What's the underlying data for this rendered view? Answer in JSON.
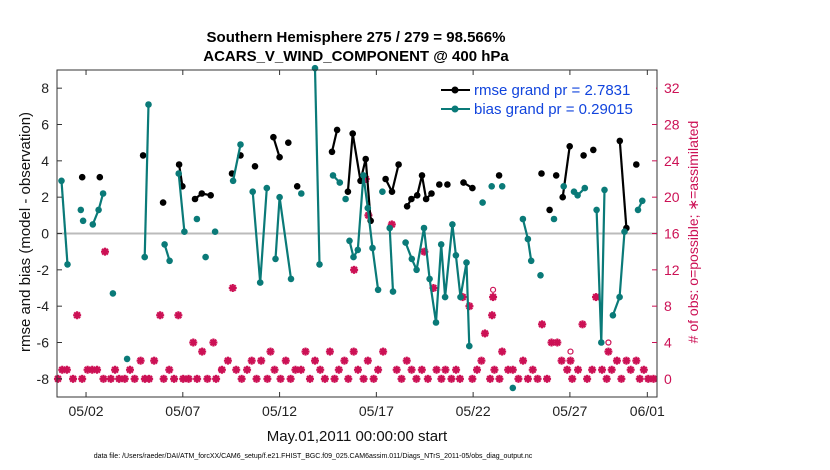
{
  "chart_data": {
    "type": "line",
    "title": "Southern Hemisphere 275 / 279 = 98.566%",
    "subtitle": "ACARS_V_WIND_COMPONENT @ 400 hPa",
    "xlabel": "May.01,2011 00:00:00 start",
    "ylabel": "rmse and bias (model - observation)",
    "ylabel_right": "# of obs: o=possible; ∗=assimilated",
    "xlim": [
      0.5,
      31.5
    ],
    "ylim": [
      -9,
      9
    ],
    "ylim_right": [
      -2,
      34
    ],
    "x_ticks": [
      {
        "x": 2,
        "label": "05/02"
      },
      {
        "x": 7,
        "label": "05/07"
      },
      {
        "x": 12,
        "label": "05/12"
      },
      {
        "x": 17,
        "label": "05/17"
      },
      {
        "x": 22,
        "label": "05/22"
      },
      {
        "x": 27,
        "label": "05/27"
      },
      {
        "x": 31,
        "label": "06/01"
      }
    ],
    "y_ticks": [
      -8,
      -6,
      -4,
      -2,
      0,
      2,
      4,
      6,
      8
    ],
    "y_ticks_right": [
      0,
      4,
      8,
      12,
      16,
      20,
      24,
      28,
      32
    ],
    "zero_line": 0,
    "legend": {
      "placement": "top-right",
      "entries": [
        "rmse grand pr = 2.7831",
        "bias grand pr = 0.29015"
      ]
    },
    "colors": {
      "rmse": "#000000",
      "bias": "#0a7a78",
      "obs": "#cc1155",
      "zero": "#bbbbbb"
    },
    "series": [
      {
        "name": "rmse grand pr = 2.7831",
        "segments": [
          [
            [
              1.8,
              3.1
            ]
          ],
          [
            [
              2.71,
              3.1
            ]
          ],
          [
            [
              4.95,
              4.3
            ]
          ],
          [
            [
              5.98,
              1.7
            ]
          ],
          [
            [
              6.81,
              3.8
            ],
            [
              6.98,
              2.6
            ]
          ],
          [
            [
              7.63,
              1.9
            ],
            [
              7.98,
              2.2
            ],
            [
              8.44,
              2.1
            ]
          ],
          [
            [
              9.54,
              3.3
            ]
          ],
          [
            [
              9.98,
              4.3
            ]
          ],
          [
            [
              10.73,
              3.7
            ]
          ],
          [
            [
              11.68,
              5.3
            ],
            [
              12.0,
              4.2
            ]
          ],
          [
            [
              12.45,
              5.0
            ]
          ],
          [
            [
              12.91,
              2.6
            ]
          ],
          [
            [
              14.71,
              4.5
            ],
            [
              14.97,
              5.7
            ]
          ],
          [
            [
              15.53,
              2.3
            ],
            [
              15.78,
              5.5
            ],
            [
              16.18,
              2.9
            ],
            [
              16.45,
              4.1
            ],
            [
              16.71,
              0.7
            ]
          ],
          [
            [
              17.48,
              3.0
            ],
            [
              17.81,
              2.3
            ],
            [
              18.15,
              3.8
            ]
          ],
          [
            [
              18.59,
              1.5
            ],
            [
              18.81,
              1.9
            ],
            [
              19.11,
              2.1
            ],
            [
              19.36,
              3.2
            ],
            [
              19.57,
              1.9
            ],
            [
              19.85,
              2.2
            ]
          ],
          [
            [
              20.25,
              2.7
            ]
          ],
          [
            [
              20.67,
              2.7
            ]
          ],
          [
            [
              21.5,
              2.8
            ],
            [
              21.96,
              2.5
            ]
          ],
          [
            [
              23.34,
              3.2
            ]
          ],
          [
            [
              25.53,
              3.3
            ]
          ],
          [
            [
              25.95,
              1.3
            ]
          ],
          [
            [
              26.29,
              3.2
            ]
          ],
          [
            [
              26.63,
              2.0
            ],
            [
              26.99,
              4.8
            ]
          ],
          [
            [
              27.71,
              4.3
            ]
          ],
          [
            [
              28.21,
              4.6
            ]
          ],
          [
            [
              29.58,
              5.1
            ],
            [
              29.92,
              0.3
            ]
          ],
          [
            [
              30.43,
              3.8
            ]
          ]
        ]
      },
      {
        "name": "bias grand pr = 0.29015",
        "segments": [
          [
            [
              0.73,
              2.9
            ],
            [
              1.04,
              -1.7
            ]
          ],
          [
            [
              1.73,
              1.3
            ]
          ],
          [
            [
              1.85,
              0.7
            ]
          ],
          [
            [
              2.35,
              0.5
            ],
            [
              2.65,
              1.3
            ],
            [
              2.88,
              2.2
            ]
          ],
          [
            [
              3.39,
              -3.3
            ]
          ],
          [
            [
              4.12,
              -6.9
            ]
          ],
          [
            [
              5.03,
              -1.3
            ],
            [
              5.23,
              7.1
            ]
          ],
          [
            [
              6.06,
              -0.6
            ],
            [
              6.32,
              -1.5
            ]
          ],
          [
            [
              6.79,
              3.3
            ],
            [
              7.08,
              0.1
            ]
          ],
          [
            [
              7.73,
              0.8
            ]
          ],
          [
            [
              8.18,
              -1.3
            ]
          ],
          [
            [
              8.67,
              0.1
            ]
          ],
          [
            [
              9.6,
              2.9
            ],
            [
              9.98,
              4.9
            ]
          ],
          [
            [
              10.61,
              2.3
            ],
            [
              11.0,
              -2.7
            ],
            [
              11.34,
              2.5
            ]
          ],
          [
            [
              11.79,
              -1.4
            ],
            [
              12.0,
              2.0
            ],
            [
              12.59,
              -2.5
            ]
          ],
          [
            [
              13.12,
              2.2
            ]
          ],
          [
            [
              13.83,
              9.1
            ],
            [
              14.06,
              -1.7
            ]
          ],
          [
            [
              14.76,
              3.2
            ],
            [
              15.11,
              2.8
            ]
          ],
          [
            [
              15.41,
              1.9
            ]
          ],
          [
            [
              15.61,
              -0.4
            ],
            [
              15.82,
              -1.3
            ],
            [
              16.04,
              -0.9
            ],
            [
              16.33,
              3.2
            ],
            [
              16.56,
              1.4
            ],
            [
              16.8,
              -0.8
            ],
            [
              17.09,
              -3.1
            ]
          ],
          [
            [
              17.31,
              2.3
            ]
          ],
          [
            [
              17.69,
              0.3
            ],
            [
              17.86,
              -3.2
            ]
          ],
          [
            [
              18.51,
              -0.5
            ],
            [
              18.83,
              -1.4
            ],
            [
              19.08,
              -2.0
            ],
            [
              19.46,
              0.3
            ],
            [
              19.75,
              -2.5
            ],
            [
              20.08,
              -4.9
            ],
            [
              20.35,
              -0.6
            ],
            [
              20.55,
              -3.5
            ],
            [
              20.93,
              0.5
            ],
            [
              21.11,
              -1.2
            ],
            [
              21.35,
              -3.5
            ],
            [
              21.66,
              -1.6
            ],
            [
              21.8,
              -6.2
            ]
          ],
          [
            [
              22.49,
              1.7
            ]
          ],
          [
            [
              22.96,
              2.6
            ]
          ],
          [
            [
              23.5,
              2.6
            ]
          ],
          [
            [
              24.05,
              -8.5
            ]
          ],
          [
            [
              24.57,
              0.8
            ],
            [
              24.83,
              -0.3
            ],
            [
              25.0,
              -1.5
            ]
          ],
          [
            [
              25.48,
              -2.3
            ]
          ],
          [
            [
              26.18,
              0.8
            ]
          ],
          [
            [
              26.68,
              2.6
            ]
          ],
          [
            [
              27.21,
              2.3
            ],
            [
              27.4,
              2.1
            ],
            [
              27.77,
              2.5
            ]
          ],
          [
            [
              28.38,
              1.3
            ],
            [
              28.62,
              -6.0
            ],
            [
              28.79,
              2.4
            ]
          ],
          [
            [
              29.22,
              -4.5
            ],
            [
              29.57,
              -3.5
            ],
            [
              29.82,
              0.1
            ]
          ],
          [
            [
              30.52,
              1.3
            ],
            [
              30.74,
              1.8
            ]
          ]
        ]
      }
    ],
    "obs_points": [
      [
        0.55,
        0
      ],
      [
        0.77,
        1
      ],
      [
        1.01,
        1
      ],
      [
        1.33,
        0
      ],
      [
        1.54,
        7
      ],
      [
        1.8,
        0
      ],
      [
        2.08,
        1
      ],
      [
        2.32,
        1
      ],
      [
        2.57,
        1
      ],
      [
        2.9,
        0
      ],
      [
        2.98,
        14
      ],
      [
        3.28,
        0
      ],
      [
        3.5,
        1
      ],
      [
        3.71,
        0
      ],
      [
        4.0,
        0
      ],
      [
        4.27,
        1
      ],
      [
        4.51,
        0
      ],
      [
        4.82,
        2
      ],
      [
        5.04,
        0
      ],
      [
        5.26,
        0
      ],
      [
        5.52,
        2
      ],
      [
        5.83,
        7
      ],
      [
        6.01,
        0
      ],
      [
        6.3,
        1
      ],
      [
        6.55,
        0
      ],
      [
        6.77,
        7
      ],
      [
        7.02,
        0
      ],
      [
        7.3,
        0
      ],
      [
        7.54,
        4
      ],
      [
        7.74,
        0
      ],
      [
        8.0,
        3
      ],
      [
        8.27,
        0
      ],
      [
        8.58,
        4
      ],
      [
        8.72,
        0
      ],
      [
        9.02,
        1
      ],
      [
        9.33,
        2
      ],
      [
        9.58,
        10
      ],
      [
        9.76,
        1
      ],
      [
        10.04,
        0
      ],
      [
        10.32,
        1
      ],
      [
        10.56,
        2
      ],
      [
        10.81,
        0
      ],
      [
        11.05,
        2
      ],
      [
        11.37,
        0
      ],
      [
        11.53,
        3
      ],
      [
        11.74,
        1
      ],
      [
        12.05,
        0
      ],
      [
        12.32,
        2
      ],
      [
        12.57,
        0
      ],
      [
        12.82,
        1
      ],
      [
        13.11,
        1
      ],
      [
        13.34,
        3
      ],
      [
        13.57,
        0
      ],
      [
        13.83,
        2
      ],
      [
        14.1,
        1
      ],
      [
        14.34,
        0
      ],
      [
        14.6,
        3
      ],
      [
        14.84,
        0
      ],
      [
        15.06,
        1
      ],
      [
        15.35,
        2
      ],
      [
        15.55,
        0
      ],
      [
        15.83,
        3
      ],
      [
        16.05,
        1
      ],
      [
        16.34,
        0
      ],
      [
        16.56,
        2
      ],
      [
        16.86,
        0
      ],
      [
        15.85,
        12
      ],
      [
        16.45,
        22
      ],
      [
        16.59,
        18
      ],
      [
        17.09,
        1
      ],
      [
        17.35,
        3
      ],
      [
        17.8,
        17
      ],
      [
        18.05,
        1
      ],
      [
        18.3,
        0
      ],
      [
        18.57,
        2
      ],
      [
        18.82,
        1
      ],
      [
        19.07,
        0
      ],
      [
        19.35,
        1
      ],
      [
        19.48,
        14
      ],
      [
        19.66,
        0
      ],
      [
        19.95,
        10
      ],
      [
        20.11,
        1
      ],
      [
        20.36,
        0
      ],
      [
        20.57,
        1
      ],
      [
        20.88,
        0
      ],
      [
        21.12,
        1
      ],
      [
        21.32,
        0
      ],
      [
        21.46,
        9
      ],
      [
        21.81,
        8
      ],
      [
        21.96,
        0
      ],
      [
        22.2,
        1
      ],
      [
        22.43,
        2
      ],
      [
        22.61,
        5
      ],
      [
        22.88,
        0
      ],
      [
        22.98,
        7
      ],
      [
        23.1,
        1
      ],
      [
        23.36,
        0
      ],
      [
        23.5,
        3
      ],
      [
        23.81,
        1
      ],
      [
        24.05,
        1
      ],
      [
        24.34,
        0
      ],
      [
        24.58,
        2
      ],
      [
        24.83,
        0
      ],
      [
        25.08,
        1
      ],
      [
        25.33,
        0
      ],
      [
        25.56,
        6
      ],
      [
        25.82,
        0
      ],
      [
        26.05,
        4
      ],
      [
        26.35,
        4
      ],
      [
        26.57,
        2
      ],
      [
        26.86,
        1
      ],
      [
        27.12,
        0
      ],
      [
        27.42,
        1
      ],
      [
        27.65,
        6
      ],
      [
        27.89,
        0
      ],
      [
        28.15,
        1
      ],
      [
        28.35,
        9
      ],
      [
        28.66,
        1
      ],
      [
        28.9,
        0
      ],
      [
        29.16,
        1
      ],
      [
        29.43,
        2
      ],
      [
        29.66,
        0
      ],
      [
        29.92,
        2
      ],
      [
        30.14,
        1
      ],
      [
        30.43,
        2
      ],
      [
        30.61,
        0
      ],
      [
        30.82,
        1
      ],
      [
        31.05,
        0
      ],
      [
        31.32,
        0
      ],
      [
        23.03,
        9
      ],
      [
        27.03,
        2
      ],
      [
        28.99,
        3
      ]
    ],
    "obs_possible_points": [
      [
        8.98,
        1
      ],
      [
        23.03,
        9.8
      ],
      [
        27.03,
        3.0
      ],
      [
        28.99,
        4.0
      ]
    ],
    "footnote": "data file: /Users/raeder/DAI/ATM_forcXX/CAM6_setup/f.e21.FHIST_BGC.f09_025.CAM6assim.011/Diags_NTrS_2011-05/obs_diag_output.nc"
  }
}
